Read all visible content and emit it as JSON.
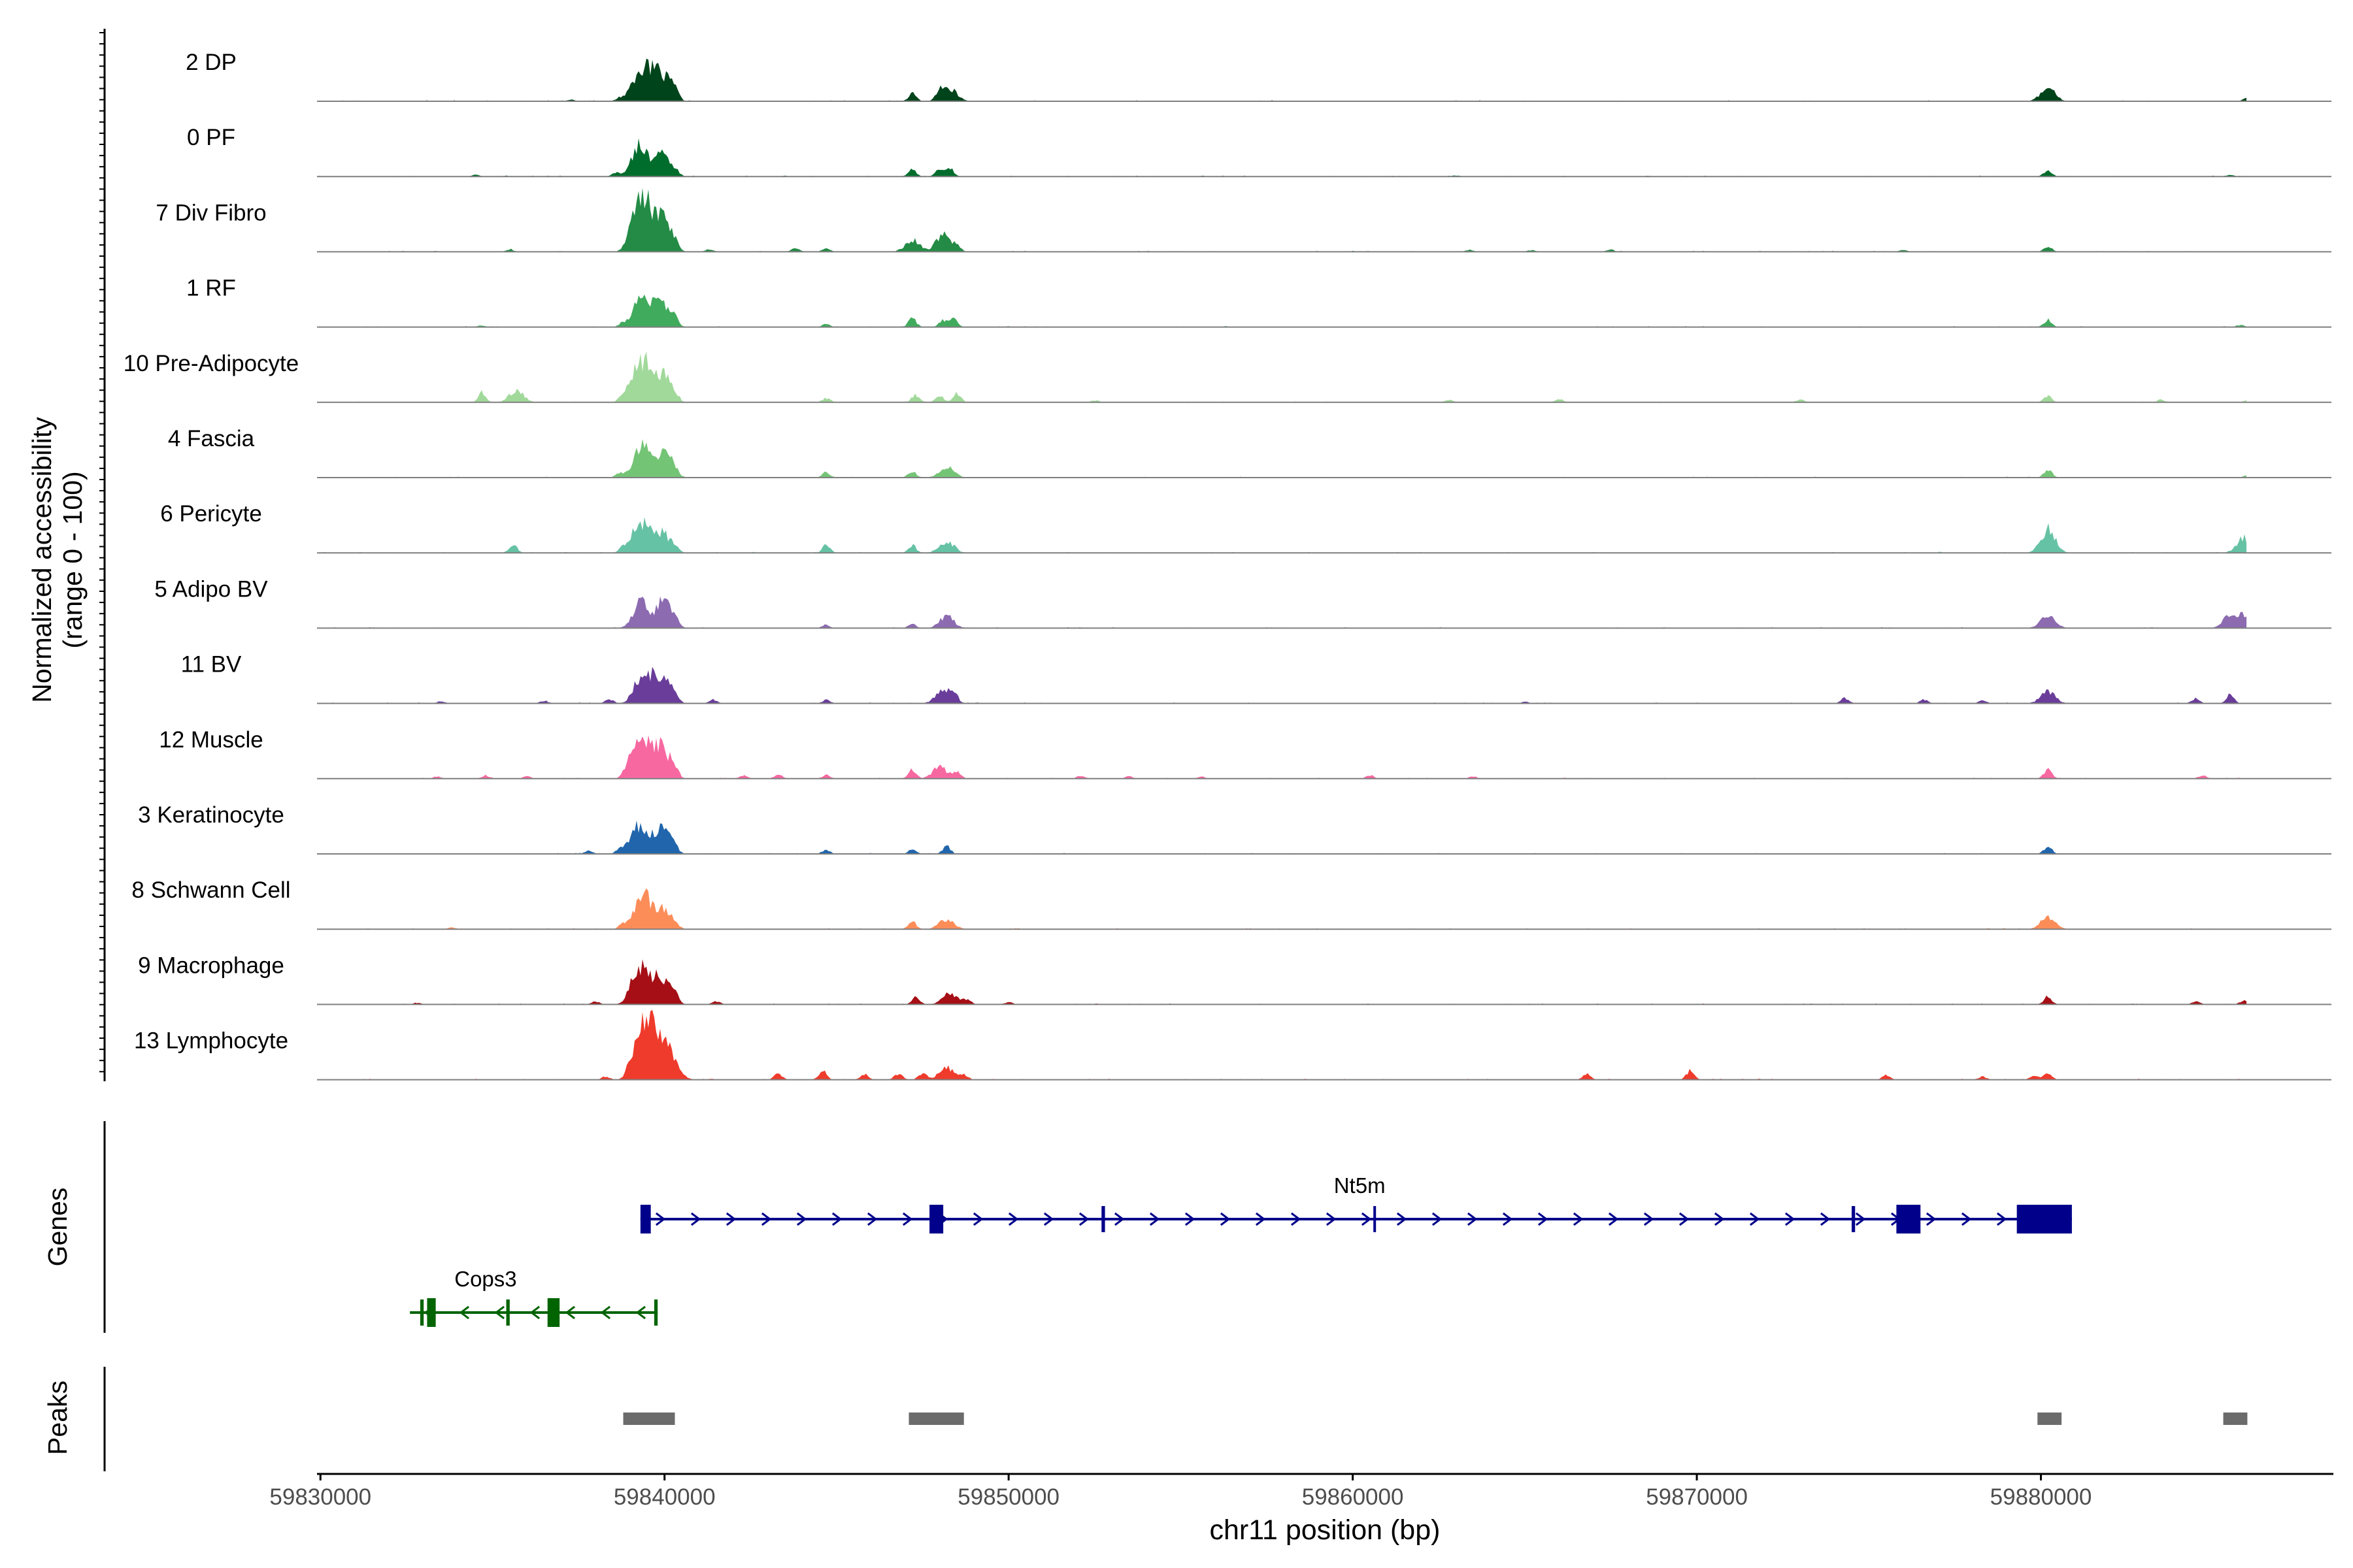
{
  "chart_data": {
    "type": "area",
    "title": "",
    "ylabel": "Normalized accessibility\n(range 0 - 100)",
    "ylim": [
      0,
      100
    ],
    "xlabel": "chr11 position (bp)",
    "xlim": [
      59829900,
      59888500
    ],
    "x_ticks": [
      59830000,
      59840000,
      59850000,
      59860000,
      59870000,
      59880000
    ],
    "x_tick_labels": [
      "59830000",
      "59840000",
      "59850000",
      "59860000",
      "59870000",
      "59880000"
    ],
    "grid": false,
    "legend": "none",
    "track_range_x": [
      59829900,
      59886000
    ],
    "tracks": [
      {
        "name": "2 DP",
        "color": "#00441b",
        "peaks": [
          [
            59837300,
            3
          ],
          [
            59838700,
            6
          ],
          [
            59839200,
            40
          ],
          [
            59839500,
            44
          ],
          [
            59839750,
            18
          ],
          [
            59840000,
            42
          ],
          [
            59840300,
            14
          ],
          [
            59847200,
            14
          ],
          [
            59848000,
            18
          ],
          [
            59848300,
            22
          ],
          [
            59880200,
            24
          ],
          [
            59886000,
            6
          ]
        ]
      },
      {
        "name": "0 PF",
        "color": "#006d2c",
        "peaks": [
          [
            59834500,
            3
          ],
          [
            59838600,
            7
          ],
          [
            59839200,
            44
          ],
          [
            59839450,
            28
          ],
          [
            59839950,
            38
          ],
          [
            59840300,
            10
          ],
          [
            59847200,
            14
          ],
          [
            59848000,
            16
          ],
          [
            59848300,
            14
          ],
          [
            59863000,
            2
          ],
          [
            59880200,
            12
          ],
          [
            59885500,
            3
          ]
        ]
      },
      {
        "name": "7 Div Fibro",
        "color": "#238b45",
        "peaks": [
          [
            59835500,
            5
          ],
          [
            59839000,
            14
          ],
          [
            59839200,
            62
          ],
          [
            59839500,
            66
          ],
          [
            59839950,
            60
          ],
          [
            59840300,
            12
          ],
          [
            59841300,
            5
          ],
          [
            59843800,
            7
          ],
          [
            59844700,
            6
          ],
          [
            59847200,
            22
          ],
          [
            59848100,
            32
          ],
          [
            59848500,
            8
          ],
          [
            59863400,
            4
          ],
          [
            59865200,
            3
          ],
          [
            59867500,
            4
          ],
          [
            59876000,
            3
          ],
          [
            59880200,
            10
          ]
        ]
      },
      {
        "name": "1 RF",
        "color": "#41ab5d",
        "peaks": [
          [
            59834700,
            3
          ],
          [
            59838800,
            8
          ],
          [
            59839300,
            48
          ],
          [
            59839600,
            30
          ],
          [
            59840000,
            34
          ],
          [
            59840300,
            10
          ],
          [
            59844700,
            6
          ],
          [
            59847200,
            16
          ],
          [
            59848100,
            12
          ],
          [
            59848400,
            14
          ],
          [
            59880200,
            14
          ],
          [
            59885800,
            4
          ]
        ]
      },
      {
        "name": "10 Pre-Adipocyte",
        "color": "#a1d99b",
        "peaks": [
          [
            59834700,
            18
          ],
          [
            59835700,
            22
          ],
          [
            59838800,
            16
          ],
          [
            59839200,
            50
          ],
          [
            59839500,
            54
          ],
          [
            59839950,
            50
          ],
          [
            59840300,
            14
          ],
          [
            59844700,
            8
          ],
          [
            59847300,
            14
          ],
          [
            59848000,
            12
          ],
          [
            59848500,
            16
          ],
          [
            59852500,
            4
          ],
          [
            59862800,
            5
          ],
          [
            59866000,
            6
          ],
          [
            59873000,
            5
          ],
          [
            59880200,
            12
          ],
          [
            59883500,
            5
          ],
          [
            59886000,
            4
          ]
        ]
      },
      {
        "name": "4 Fascia",
        "color": "#74c476",
        "peaks": [
          [
            59838700,
            8
          ],
          [
            59839300,
            50
          ],
          [
            59839600,
            22
          ],
          [
            59840000,
            40
          ],
          [
            59840300,
            10
          ],
          [
            59844700,
            10
          ],
          [
            59847200,
            12
          ],
          [
            59848200,
            20
          ],
          [
            59880200,
            16
          ],
          [
            59886000,
            4
          ]
        ]
      },
      {
        "name": "6 Pericyte",
        "color": "#66c2a4",
        "peaks": [
          [
            59835600,
            16
          ],
          [
            59838800,
            10
          ],
          [
            59839200,
            38
          ],
          [
            59839500,
            32
          ],
          [
            59839950,
            36
          ],
          [
            59840300,
            8
          ],
          [
            59844700,
            14
          ],
          [
            59847200,
            14
          ],
          [
            59848200,
            22
          ],
          [
            59880200,
            44
          ],
          [
            59885900,
            28
          ]
        ]
      },
      {
        "name": "5 Adipo BV",
        "color": "#8c6bb1",
        "peaks": [
          [
            59839300,
            48
          ],
          [
            59839950,
            50
          ],
          [
            59840300,
            14
          ],
          [
            59844700,
            6
          ],
          [
            59847200,
            8
          ],
          [
            59848200,
            22
          ],
          [
            59880200,
            24
          ],
          [
            59885500,
            22
          ],
          [
            59885900,
            20
          ]
        ]
      },
      {
        "name": "11 BV",
        "color": "#6a3d9a",
        "peaks": [
          [
            59833500,
            4
          ],
          [
            59836500,
            5
          ],
          [
            59838400,
            8
          ],
          [
            59839300,
            42
          ],
          [
            59839600,
            30
          ],
          [
            59839950,
            46
          ],
          [
            59840300,
            12
          ],
          [
            59841400,
            7
          ],
          [
            59844700,
            6
          ],
          [
            59848100,
            28
          ],
          [
            59848400,
            16
          ],
          [
            59865000,
            3
          ],
          [
            59874300,
            10
          ],
          [
            59876600,
            7
          ],
          [
            59878300,
            5
          ],
          [
            59880200,
            22
          ],
          [
            59884500,
            10
          ],
          [
            59885500,
            16
          ]
        ]
      },
      {
        "name": "12 Muscle",
        "color": "#f768a1",
        "peaks": [
          [
            59833400,
            4
          ],
          [
            59834800,
            6
          ],
          [
            59836000,
            4
          ],
          [
            59838900,
            10
          ],
          [
            59839200,
            50
          ],
          [
            59839550,
            46
          ],
          [
            59839950,
            54
          ],
          [
            59840300,
            14
          ],
          [
            59842300,
            6
          ],
          [
            59843300,
            8
          ],
          [
            59844700,
            7
          ],
          [
            59847200,
            18
          ],
          [
            59848000,
            22
          ],
          [
            59848500,
            12
          ],
          [
            59852100,
            5
          ],
          [
            59853500,
            4
          ],
          [
            59855600,
            4
          ],
          [
            59860500,
            6
          ],
          [
            59863500,
            4
          ],
          [
            59880200,
            18
          ],
          [
            59884700,
            6
          ]
        ]
      },
      {
        "name": "3 Keratinocyte",
        "color": "#2166ac",
        "peaks": [
          [
            59837800,
            6
          ],
          [
            59838700,
            10
          ],
          [
            59839200,
            44
          ],
          [
            59839500,
            22
          ],
          [
            59839950,
            46
          ],
          [
            59840300,
            10
          ],
          [
            59844700,
            8
          ],
          [
            59847200,
            8
          ],
          [
            59848200,
            14
          ],
          [
            59880200,
            14
          ]
        ]
      },
      {
        "name": "8 Schwann Cell",
        "color": "#fc8d59",
        "peaks": [
          [
            59833800,
            3
          ],
          [
            59838800,
            10
          ],
          [
            59839300,
            54
          ],
          [
            59839600,
            24
          ],
          [
            59839950,
            34
          ],
          [
            59840300,
            10
          ],
          [
            59847200,
            14
          ],
          [
            59848200,
            20
          ],
          [
            59880200,
            22
          ]
        ]
      },
      {
        "name": "9 Macrophage",
        "color": "#a50f15",
        "peaks": [
          [
            59832800,
            3
          ],
          [
            59838000,
            6
          ],
          [
            59839200,
            56
          ],
          [
            59839550,
            40
          ],
          [
            59839950,
            44
          ],
          [
            59840300,
            16
          ],
          [
            59841500,
            6
          ],
          [
            59847300,
            16
          ],
          [
            59848300,
            20
          ],
          [
            59848800,
            8
          ],
          [
            59850000,
            4
          ],
          [
            59880200,
            14
          ],
          [
            59884500,
            6
          ],
          [
            59885900,
            8
          ]
        ]
      },
      {
        "name": "13 Lymphocyte",
        "color": "#ef3b2c",
        "peaks": [
          [
            59838300,
            6
          ],
          [
            59839000,
            14
          ],
          [
            59839300,
            84
          ],
          [
            59839600,
            60
          ],
          [
            59839950,
            70
          ],
          [
            59840300,
            20
          ],
          [
            59843300,
            12
          ],
          [
            59844600,
            16
          ],
          [
            59845800,
            10
          ],
          [
            59846800,
            12
          ],
          [
            59847500,
            12
          ],
          [
            59848200,
            24
          ],
          [
            59848700,
            10
          ],
          [
            59866800,
            10
          ],
          [
            59869800,
            16
          ],
          [
            59875500,
            8
          ],
          [
            59878300,
            6
          ],
          [
            59879800,
            8
          ],
          [
            59880200,
            12
          ]
        ]
      }
    ],
    "genes_track": {
      "label": "Genes",
      "genes": [
        {
          "name": "Nt5m",
          "strand": "+",
          "color": "#00008b",
          "start": 59839300,
          "end": 59880900,
          "exons": [
            [
              59839300,
              59839600
            ],
            [
              59847700,
              59848100
            ],
            [
              59852700,
              59852800
            ],
            [
              59860600,
              59860650
            ],
            [
              59874500,
              59874600
            ],
            [
              59875800,
              59876500
            ],
            [
              59879300,
              59880900
            ]
          ]
        },
        {
          "name": "Cops3",
          "strand": "-",
          "color": "#006400",
          "start": 59832600,
          "end": 59839800,
          "exons": [
            [
              59832900,
              59833000
            ],
            [
              59833100,
              59833350
            ],
            [
              59835400,
              59835500
            ],
            [
              59836600,
              59836950
            ],
            [
              59839700,
              59839800
            ]
          ]
        }
      ]
    },
    "peaks_track": {
      "label": "Peaks",
      "color": "#6b6b6b",
      "regions": [
        [
          59838800,
          59840300
        ],
        [
          59847100,
          59848700
        ],
        [
          59879900,
          59880600
        ],
        [
          59885300,
          59886000
        ]
      ]
    }
  }
}
